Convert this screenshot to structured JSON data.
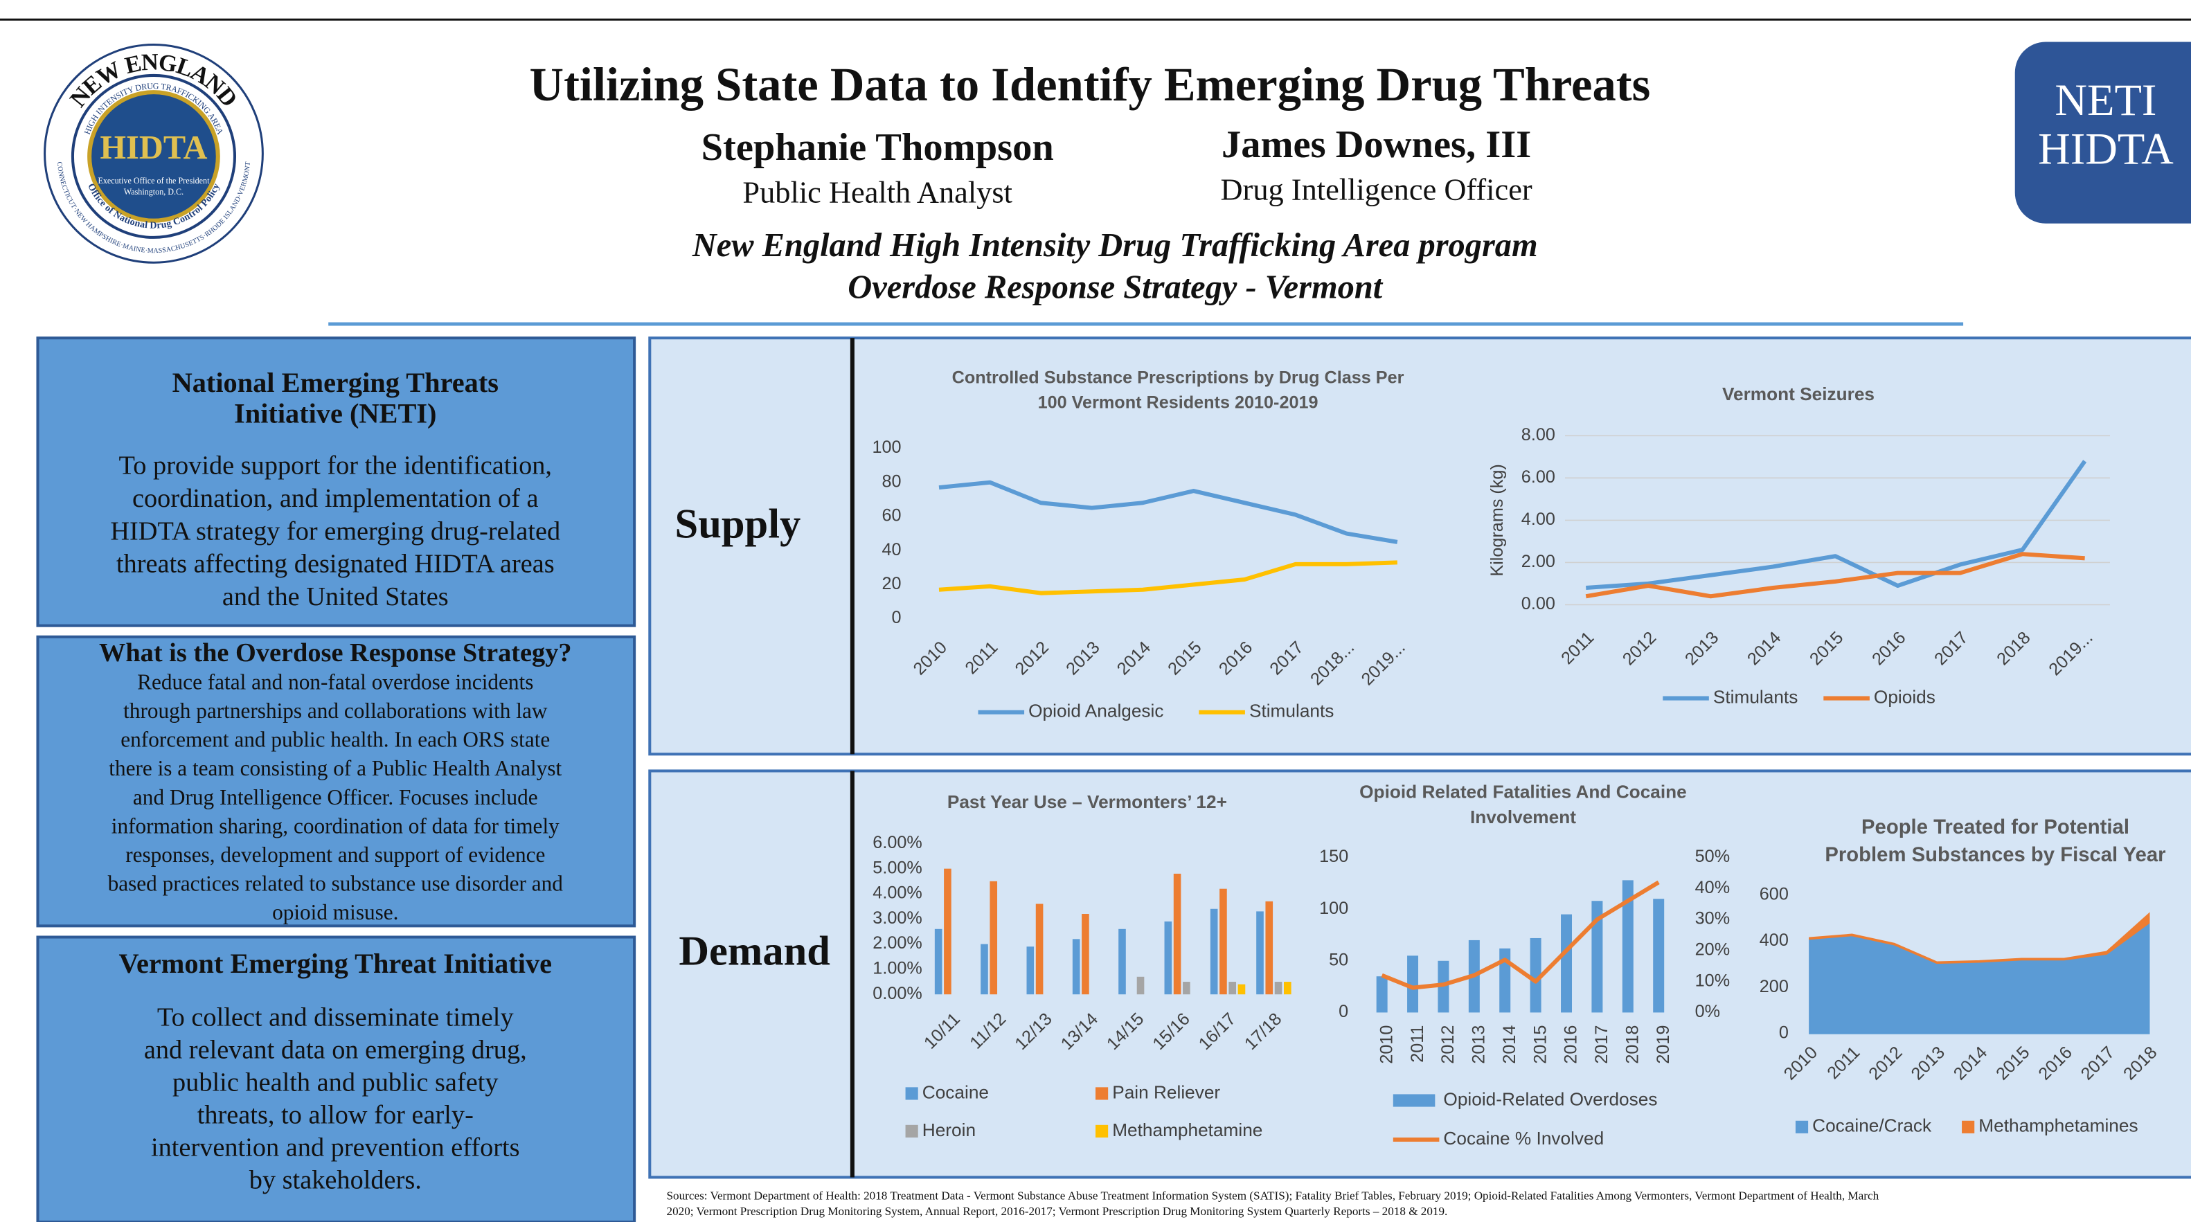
{
  "header": {
    "title": "Utilizing State Data to Identify Emerging Drug Threats",
    "authors": [
      {
        "name": "Stephanie Thompson",
        "role": "Public Health Analyst"
      },
      {
        "name": "James Downes, III",
        "role": "Drug Intelligence Officer"
      }
    ],
    "program": [
      "New England High Intensity Drug Trafficking Area program",
      "Overdose Response Strategy - Vermont"
    ]
  },
  "logo": {
    "top": "NEW ENGLAND",
    "ring": "HIGH INTENSITY DRUG TRAFFICKING AREA",
    "center": "HIDTA",
    "inner": [
      "Executive Office of the President",
      "Washington, D.C."
    ],
    "bottom": "Office of National Drug Control Policy",
    "states": "CONNECTICUT·NEW HAMPSHIRE·MAINE·MASSACHUSETTS·RHODE ISLAND·VERMONT"
  },
  "badge": [
    "NETI",
    "HIDTA"
  ],
  "panels": [
    {
      "title": [
        "National Emerging Threats",
        "Initiative (NETI)"
      ],
      "body": [
        "To provide support for the identification,",
        "coordination, and implementation of a",
        "HIDTA strategy for emerging drug-related",
        "threats affecting designated HIDTA areas",
        "and the United States"
      ]
    },
    {
      "title": [
        "What is the Overdose Response Strategy?"
      ],
      "body": [
        "Reduce fatal and non-fatal overdose incidents",
        "through partnerships and collaborations with law",
        "enforcement and public health. In each ORS state",
        "there is a team consisting of a Public Health Analyst",
        "and Drug Intelligence Officer. Focuses include",
        "information sharing, coordination of data for timely",
        "responses, development and support of evidence",
        "based practices related to substance use disorder and",
        "opioid misuse."
      ]
    },
    {
      "title": [
        "Vermont Emerging Threat Initiative"
      ],
      "body": [
        "To collect and disseminate timely",
        "and relevant data on emerging drug,",
        "public health and public safety",
        "threats, to allow for early-",
        "intervention and prevention efforts",
        "by stakeholders."
      ]
    }
  ],
  "sections": [
    "Supply",
    "Demand"
  ],
  "sources": [
    "Sources: Vermont Department of Health: 2018 Treatment Data -  Vermont Substance Abuse Treatment Information System (SATIS); Fatality Brief Tables, February 2019; Opioid-Related Fatalities Among Vermonters, Vermont Department of Health, March",
    "2020; Vermont Prescription Drug Monitoring System, Annual Report, 2016-2017; Vermont Prescription Drug Monitoring System Quarterly Reports –  2018 & 2019."
  ],
  "chart_data": [
    {
      "type": "line",
      "title": [
        "Controlled Substance Prescriptions by Drug Class Per",
        "100 Vermont Residents 2010-2019"
      ],
      "categories": [
        "2010",
        "2011",
        "2012",
        "2013",
        "2014",
        "2015",
        "2016",
        "2017",
        "2018...",
        "2019..."
      ],
      "series": [
        {
          "name": "Opioid Analgesic",
          "color": "#5b9bd5",
          "values": [
            77,
            80,
            68,
            65,
            68,
            75,
            68,
            61,
            50,
            45
          ]
        },
        {
          "name": "Stimulants",
          "color": "#ffc000",
          "values": [
            17,
            19,
            15,
            16,
            17,
            20,
            23,
            32,
            32,
            33
          ]
        }
      ],
      "ylim": [
        0,
        100
      ],
      "yticks": [
        0,
        20,
        40,
        60,
        80,
        100
      ],
      "grid": false
    },
    {
      "type": "line",
      "title": [
        "Vermont Seizures"
      ],
      "y_label": "Kilograms (kg)",
      "categories": [
        "2011",
        "2012",
        "2013",
        "2014",
        "2015",
        "2016",
        "2017",
        "2018",
        "2019..."
      ],
      "series": [
        {
          "name": "Stimulants",
          "color": "#5b9bd5",
          "values": [
            0.8,
            1.0,
            1.4,
            1.8,
            2.3,
            0.9,
            1.9,
            2.6,
            6.8
          ]
        },
        {
          "name": "Opioids",
          "color": "#ed7d31",
          "values": [
            0.4,
            0.9,
            0.4,
            0.8,
            1.1,
            1.5,
            1.5,
            2.4,
            2.2
          ]
        }
      ],
      "ylim": [
        0,
        8
      ],
      "yticks": [
        {
          "value": 0,
          "label": "0.00"
        },
        {
          "value": 2,
          "label": "2.00"
        },
        {
          "value": 4,
          "label": "4.00"
        },
        {
          "value": 6,
          "label": "6.00"
        },
        {
          "value": 8,
          "label": "8.00"
        }
      ],
      "grid": true
    },
    {
      "type": "bar",
      "title": [
        "Past Year Use – Vermonters’ 12+"
      ],
      "categories": [
        "10/11",
        "11/12",
        "12/13",
        "13/14",
        "14/15",
        "15/16",
        "16/17",
        "17/18"
      ],
      "series": [
        {
          "name": "Cocaine",
          "color": "#5b9bd5",
          "values": [
            2.6,
            2.0,
            1.9,
            2.2,
            2.6,
            2.9,
            3.4,
            3.3
          ]
        },
        {
          "name": "Pain Reliever",
          "color": "#ed7d31",
          "values": [
            5.0,
            4.5,
            3.6,
            3.2,
            null,
            4.8,
            4.2,
            3.7
          ]
        },
        {
          "name": "Heroin",
          "color": "#a5a5a5",
          "values": [
            null,
            null,
            null,
            null,
            0.7,
            0.5,
            0.5,
            0.5
          ]
        },
        {
          "name": "Methamphetamine",
          "color": "#ffc000",
          "values": [
            null,
            null,
            null,
            null,
            null,
            null,
            0.4,
            0.5
          ]
        }
      ],
      "ylim": [
        0,
        6
      ],
      "yticks": [
        {
          "value": 0,
          "label": "0.00%"
        },
        {
          "value": 1,
          "label": "1.00%"
        },
        {
          "value": 2,
          "label": "2.00%"
        },
        {
          "value": 3,
          "label": "3.00%"
        },
        {
          "value": 4,
          "label": "4.00%"
        },
        {
          "value": 5,
          "label": "5.00%"
        },
        {
          "value": 6,
          "label": "6.00%"
        }
      ],
      "grid": false
    },
    {
      "type": "combo",
      "title": [
        "Opioid Related Fatalities And Cocaine",
        "Involvement"
      ],
      "categories": [
        "2010",
        "2011",
        "2012",
        "2013",
        "2014",
        "2015",
        "2016",
        "2017",
        "2018",
        "2019"
      ],
      "series": [
        {
          "name": "Opioid-Related Overdoses",
          "type": "bar",
          "color": "#5b9bd5",
          "values": [
            35,
            55,
            50,
            70,
            62,
            72,
            95,
            108,
            128,
            110
          ]
        },
        {
          "name": "Cocaine % Involved",
          "type": "line",
          "axis": "y2",
          "color": "#ed7d31",
          "values": [
            12,
            8,
            9,
            12,
            17,
            10,
            20,
            30,
            36,
            42
          ]
        }
      ],
      "ylim": [
        0,
        150
      ],
      "yticks": [
        0,
        50,
        100,
        150
      ],
      "y2lim": [
        0,
        50
      ],
      "y2ticks": [
        {
          "value": 0,
          "label": "0%"
        },
        {
          "value": 10,
          "label": "10%"
        },
        {
          "value": 20,
          "label": "20%"
        },
        {
          "value": 30,
          "label": "30%"
        },
        {
          "value": 40,
          "label": "40%"
        },
        {
          "value": 50,
          "label": "50%"
        }
      ],
      "grid": false
    },
    {
      "type": "area",
      "title": [
        "People Treated for Potential",
        "Problem Substances by Fiscal Year"
      ],
      "categories": [
        "2010",
        "2011",
        "2012",
        "2013",
        "2014",
        "2015",
        "2016",
        "2017",
        "2018"
      ],
      "series": [
        {
          "name": "Cocaine/Crack",
          "color": "#5b9bd5",
          "values": [
            410,
            425,
            385,
            305,
            310,
            320,
            320,
            345,
            480
          ]
        },
        {
          "name": "Methamphetamines",
          "color": "#ed7d31",
          "values": [
            5,
            5,
            5,
            5,
            5,
            5,
            5,
            10,
            40
          ]
        }
      ],
      "ylim": [
        0,
        700
      ],
      "yticks": [
        0,
        200,
        400,
        600
      ],
      "grid": false
    }
  ]
}
